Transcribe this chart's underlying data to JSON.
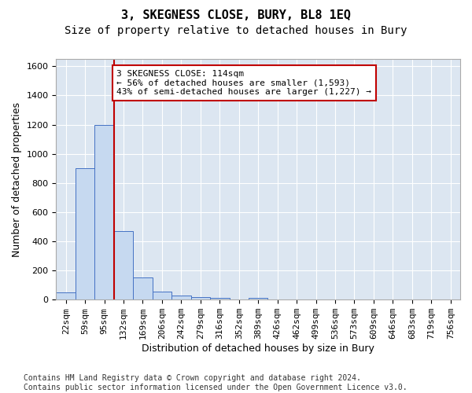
{
  "title": "3, SKEGNESS CLOSE, BURY, BL8 1EQ",
  "subtitle": "Size of property relative to detached houses in Bury",
  "xlabel": "Distribution of detached houses by size in Bury",
  "ylabel": "Number of detached properties",
  "bin_labels": [
    "22sqm",
    "59sqm",
    "95sqm",
    "132sqm",
    "169sqm",
    "206sqm",
    "242sqm",
    "279sqm",
    "316sqm",
    "352sqm",
    "389sqm",
    "426sqm",
    "462sqm",
    "499sqm",
    "536sqm",
    "573sqm",
    "609sqm",
    "646sqm",
    "683sqm",
    "719sqm",
    "756sqm"
  ],
  "bar_values": [
    50,
    900,
    1200,
    470,
    150,
    55,
    28,
    18,
    12,
    0,
    12,
    0,
    0,
    0,
    0,
    0,
    0,
    0,
    0,
    0,
    0
  ],
  "bar_color": "#c6d9f0",
  "bar_edge_color": "#4472c4",
  "background_color": "#dce6f1",
  "grid_color": "#ffffff",
  "vline_x_index": 2.5,
  "vline_color": "#c00000",
  "annotation_text": "3 SKEGNESS CLOSE: 114sqm\n← 56% of detached houses are smaller (1,593)\n43% of semi-detached houses are larger (1,227) →",
  "annotation_box_color": "#ffffff",
  "annotation_box_edge": "#c00000",
  "ylim": [
    0,
    1650
  ],
  "yticks": [
    0,
    200,
    400,
    600,
    800,
    1000,
    1200,
    1400,
    1600
  ],
  "footer": "Contains HM Land Registry data © Crown copyright and database right 2024.\nContains public sector information licensed under the Open Government Licence v3.0.",
  "title_fontsize": 11,
  "subtitle_fontsize": 10,
  "xlabel_fontsize": 9,
  "ylabel_fontsize": 9,
  "tick_fontsize": 8,
  "annotation_fontsize": 8,
  "footer_fontsize": 7
}
